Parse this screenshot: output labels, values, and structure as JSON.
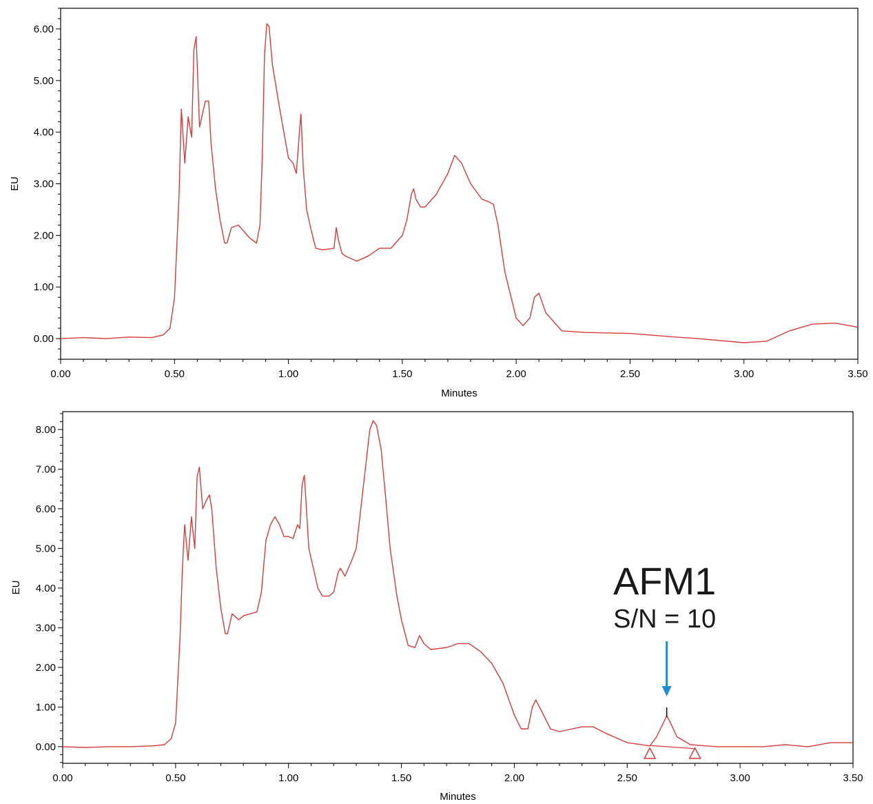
{
  "chart_data": [
    {
      "type": "line",
      "xlabel": "Minutes",
      "ylabel": "EU",
      "xlim": [
        0,
        3.5
      ],
      "ylim": [
        -0.4,
        6.4
      ],
      "xticks": [
        "0.00",
        "0.50",
        "1.00",
        "1.50",
        "2.00",
        "2.50",
        "3.00",
        "3.50"
      ],
      "yticks": [
        "0.00",
        "1.00",
        "2.00",
        "3.00",
        "4.00",
        "5.00",
        "6.00"
      ],
      "grid": false,
      "line_color": "#d63a3a",
      "series": [
        {
          "x": [
            0,
            0.1,
            0.2,
            0.3,
            0.4,
            0.45,
            0.48,
            0.5,
            0.52,
            0.53,
            0.545,
            0.56,
            0.575,
            0.585,
            0.595,
            0.61,
            0.625,
            0.635,
            0.65,
            0.66,
            0.68,
            0.7,
            0.72,
            0.73,
            0.75,
            0.78,
            0.8,
            0.83,
            0.86,
            0.875,
            0.885,
            0.895,
            0.905,
            0.915,
            0.93,
            0.96,
            1.0,
            1.02,
            1.035,
            1.05,
            1.055,
            1.065,
            1.08,
            1.1,
            1.12,
            1.15,
            1.2,
            1.21,
            1.22,
            1.235,
            1.25,
            1.3,
            1.35,
            1.4,
            1.45,
            1.5,
            1.52,
            1.54,
            1.55,
            1.56,
            1.58,
            1.6,
            1.65,
            1.7,
            1.73,
            1.76,
            1.8,
            1.85,
            1.88,
            1.9,
            1.92,
            1.95,
            2.0,
            2.03,
            2.06,
            2.08,
            2.1,
            2.13,
            2.2,
            2.3,
            2.5,
            2.7,
            2.8,
            3.0,
            3.1,
            3.2,
            3.3,
            3.4,
            3.5
          ],
          "y": [
            0.0,
            0.02,
            0.0,
            0.03,
            0.02,
            0.07,
            0.2,
            0.8,
            2.8,
            4.45,
            3.4,
            4.3,
            3.9,
            5.6,
            5.85,
            4.1,
            4.4,
            4.6,
            4.6,
            3.8,
            2.9,
            2.3,
            1.85,
            1.85,
            2.15,
            2.2,
            2.1,
            1.95,
            1.85,
            2.2,
            3.5,
            5.5,
            6.1,
            6.05,
            5.3,
            4.5,
            3.5,
            3.4,
            3.2,
            4.1,
            4.35,
            3.3,
            2.5,
            2.1,
            1.75,
            1.72,
            1.75,
            2.15,
            1.9,
            1.65,
            1.6,
            1.5,
            1.6,
            1.75,
            1.75,
            2.0,
            2.3,
            2.8,
            2.9,
            2.7,
            2.55,
            2.55,
            2.8,
            3.2,
            3.55,
            3.4,
            3.0,
            2.7,
            2.65,
            2.6,
            2.2,
            1.3,
            0.4,
            0.25,
            0.4,
            0.8,
            0.88,
            0.5,
            0.15,
            0.12,
            0.1,
            0.03,
            0.0,
            -0.08,
            -0.05,
            0.15,
            0.28,
            0.3,
            0.22
          ]
        }
      ]
    },
    {
      "type": "line",
      "xlabel": "Minutes",
      "ylabel": "EU",
      "xlim": [
        0,
        3.5
      ],
      "ylim": [
        -0.42,
        8.45
      ],
      "xticks": [
        "0.00",
        "0.50",
        "1.00",
        "1.50",
        "2.00",
        "2.50",
        "3.00",
        "3.50"
      ],
      "yticks": [
        "0.00",
        "1.00",
        "2.00",
        "3.00",
        "4.00",
        "5.00",
        "6.00",
        "7.00",
        "8.00"
      ],
      "grid": false,
      "line_color": "#d63a3a",
      "series": [
        {
          "x": [
            0,
            0.1,
            0.2,
            0.3,
            0.4,
            0.45,
            0.48,
            0.5,
            0.52,
            0.53,
            0.54,
            0.555,
            0.57,
            0.585,
            0.595,
            0.605,
            0.62,
            0.635,
            0.65,
            0.66,
            0.68,
            0.7,
            0.72,
            0.73,
            0.75,
            0.78,
            0.8,
            0.83,
            0.86,
            0.88,
            0.9,
            0.92,
            0.94,
            0.96,
            0.98,
            1.0,
            1.02,
            1.04,
            1.05,
            1.06,
            1.07,
            1.09,
            1.11,
            1.13,
            1.15,
            1.18,
            1.2,
            1.22,
            1.23,
            1.25,
            1.28,
            1.3,
            1.33,
            1.36,
            1.375,
            1.39,
            1.41,
            1.43,
            1.45,
            1.48,
            1.5,
            1.53,
            1.56,
            1.58,
            1.6,
            1.63,
            1.7,
            1.75,
            1.8,
            1.85,
            1.9,
            1.95,
            2.0,
            2.03,
            2.06,
            2.08,
            2.095,
            2.12,
            2.16,
            2.2,
            2.3,
            2.35,
            2.4,
            2.5,
            2.6,
            2.63,
            2.66,
            2.675,
            2.69,
            2.72,
            2.78,
            2.9,
            3.0,
            3.1,
            3.2,
            3.3,
            3.4,
            3.5
          ],
          "y": [
            0.0,
            -0.02,
            0.0,
            0.0,
            0.02,
            0.05,
            0.2,
            0.6,
            2.8,
            4.5,
            5.6,
            4.7,
            5.8,
            5.0,
            6.8,
            7.05,
            6.0,
            6.2,
            6.35,
            6.0,
            4.5,
            3.5,
            2.85,
            2.85,
            3.35,
            3.2,
            3.3,
            3.35,
            3.4,
            3.9,
            5.2,
            5.6,
            5.8,
            5.6,
            5.3,
            5.3,
            5.25,
            5.6,
            5.5,
            6.6,
            6.85,
            5.0,
            4.5,
            4.0,
            3.8,
            3.8,
            3.9,
            4.4,
            4.5,
            4.3,
            4.7,
            5.0,
            6.5,
            8.0,
            8.22,
            8.1,
            7.5,
            6.3,
            5.0,
            3.8,
            3.2,
            2.55,
            2.5,
            2.8,
            2.6,
            2.45,
            2.5,
            2.6,
            2.6,
            2.4,
            2.1,
            1.6,
            0.8,
            0.45,
            0.45,
            1.0,
            1.18,
            0.9,
            0.45,
            0.38,
            0.5,
            0.5,
            0.35,
            0.1,
            0.02,
            0.25,
            0.6,
            0.78,
            0.62,
            0.25,
            0.05,
            0.0,
            0.0,
            0.0,
            0.05,
            0.0,
            0.1,
            0.1
          ]
        }
      ],
      "peak_marker": {
        "x": 2.675,
        "start_x": 2.6,
        "end_x": 2.8,
        "marker_color": "#d63a3a"
      },
      "annotation": {
        "title": "AFM1",
        "subtitle": "S/N = 10",
        "arrow_x": 2.675,
        "arrow_color": "#1f8fcf"
      }
    }
  ]
}
